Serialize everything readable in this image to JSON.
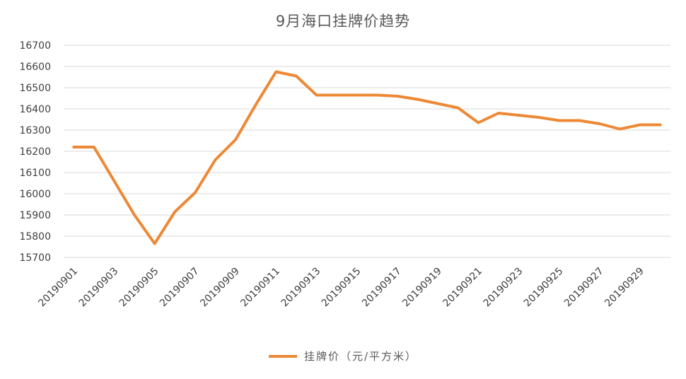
{
  "chart_data": {
    "type": "line",
    "title": "9月海口挂牌价趋势",
    "xlabel": "",
    "ylabel": "",
    "ylim": [
      15700,
      16700
    ],
    "yticks": [
      16700,
      16600,
      16500,
      16400,
      16300,
      16200,
      16100,
      16000,
      15900,
      15800,
      15700
    ],
    "categories": [
      "20190901",
      "20190902",
      "20190903",
      "20190904",
      "20190905",
      "20190906",
      "20190907",
      "20190908",
      "20190909",
      "20190910",
      "20190911",
      "20190912",
      "20190913",
      "20190914",
      "20190915",
      "20190916",
      "20190917",
      "20190918",
      "20190919",
      "20190920",
      "20190921",
      "20190922",
      "20190923",
      "20190924",
      "20190925",
      "20190926",
      "20190927",
      "20190928",
      "20190929",
      "20190930"
    ],
    "x_tick_labels": [
      "20190901",
      "20190903",
      "20190905",
      "20190907",
      "20190909",
      "20190911",
      "20190913",
      "20190915",
      "20190917",
      "20190919",
      "20190921",
      "20190923",
      "20190925",
      "20190927",
      "20190929"
    ],
    "series": [
      {
        "name": "挂牌价（元/平方米）",
        "color": "#ED8936",
        "values": [
          16220,
          16220,
          16060,
          15900,
          15765,
          15915,
          16005,
          16160,
          16255,
          16420,
          16575,
          16555,
          16465,
          16465,
          16465,
          16465,
          16460,
          16445,
          16425,
          16405,
          16335,
          16380,
          16370,
          16360,
          16345,
          16345,
          16330,
          16305,
          16325,
          16325
        ]
      }
    ],
    "grid": true,
    "legend": "bottom"
  }
}
